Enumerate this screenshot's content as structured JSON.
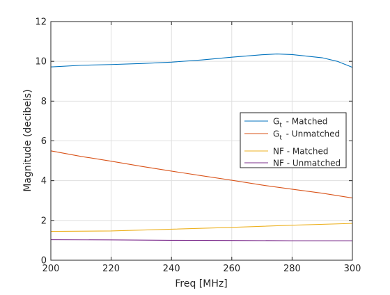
{
  "chart_data": {
    "type": "line",
    "xlabel": "Freq [MHz]",
    "ylabel": "Magnitude (decibels)",
    "xlim": [
      200,
      300
    ],
    "ylim": [
      0,
      12
    ],
    "xticks": [
      200,
      220,
      240,
      260,
      280,
      300
    ],
    "yticks": [
      0,
      2,
      4,
      6,
      8,
      10,
      12
    ],
    "grid": true,
    "legend_position": "right-middle",
    "series": [
      {
        "name": "G_t - Matched",
        "legend_main": "G",
        "legend_sub": "t",
        "legend_rest": " - Matched",
        "color": "#0072BD",
        "points": [
          [
            200,
            9.72
          ],
          [
            210,
            9.8
          ],
          [
            220,
            9.84
          ],
          [
            230,
            9.89
          ],
          [
            240,
            9.96
          ],
          [
            250,
            10.07
          ],
          [
            260,
            10.21
          ],
          [
            270,
            10.33
          ],
          [
            275,
            10.37
          ],
          [
            280,
            10.34
          ],
          [
            290,
            10.18
          ],
          [
            295,
            10.0
          ],
          [
            300,
            9.7
          ]
        ]
      },
      {
        "name": "G_t - Unmatched",
        "legend_main": "G",
        "legend_sub": "t",
        "legend_rest": " - Unmatched",
        "color": "#D95319",
        "points": [
          [
            200,
            5.5
          ],
          [
            210,
            5.22
          ],
          [
            220,
            4.98
          ],
          [
            230,
            4.72
          ],
          [
            240,
            4.48
          ],
          [
            250,
            4.25
          ],
          [
            260,
            4.02
          ],
          [
            270,
            3.78
          ],
          [
            280,
            3.57
          ],
          [
            290,
            3.37
          ],
          [
            300,
            3.13
          ]
        ]
      },
      {
        "name": "NF - Matched",
        "legend_main": "NF - Matched",
        "legend_sub": "",
        "legend_rest": "",
        "color": "#EDB120",
        "points": [
          [
            200,
            1.45
          ],
          [
            220,
            1.47
          ],
          [
            240,
            1.56
          ],
          [
            260,
            1.65
          ],
          [
            280,
            1.76
          ],
          [
            300,
            1.85
          ]
        ]
      },
      {
        "name": "NF - Unmatched",
        "legend_main": "NF - Unmatched",
        "legend_sub": "",
        "legend_rest": "",
        "color": "#7E2F8E",
        "points": [
          [
            200,
            1.03
          ],
          [
            220,
            1.02
          ],
          [
            240,
            1.0
          ],
          [
            260,
            0.99
          ],
          [
            280,
            0.98
          ],
          [
            300,
            0.98
          ]
        ]
      }
    ]
  }
}
